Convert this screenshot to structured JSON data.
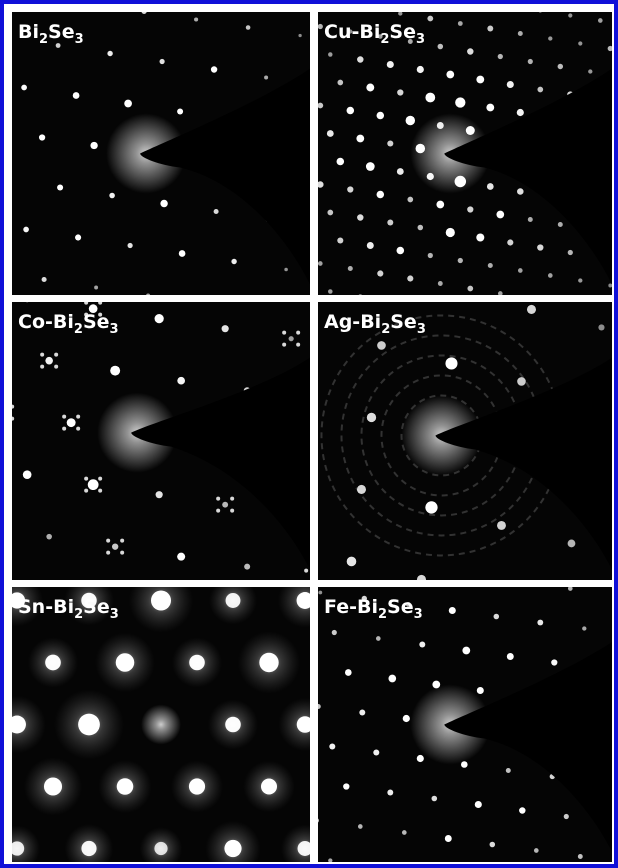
{
  "panels": [
    {
      "label": [
        "Bi",
        "2",
        "Se",
        "3"
      ]
    },
    {
      "label": [
        "Cu-Bi",
        "2",
        "Se",
        "3"
      ]
    },
    {
      "label": [
        "Co-Bi",
        "2",
        "Se",
        "3"
      ]
    },
    {
      "label": [
        "Ag-Bi",
        "2",
        "Se",
        "3"
      ]
    },
    {
      "label": [
        "Sn-Bi",
        "2",
        "Se",
        "3"
      ]
    },
    {
      "label": [
        "Fe-Bi",
        "2",
        "Se",
        "3"
      ]
    }
  ]
}
